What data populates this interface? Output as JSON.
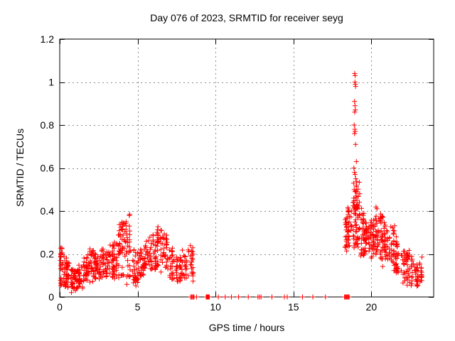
{
  "window": {
    "title": "Day 076 of 2023, SRMTID for receiver seyg"
  },
  "chart_data": {
    "type": "scatter",
    "title": "Day 076 of 2023, SRMTID for receiver seyg",
    "xlabel": "GPS time / hours",
    "ylabel": "SRMTID / TECUs",
    "xlim": [
      0,
      24
    ],
    "ylim": [
      0,
      1.2
    ],
    "xticks": [
      0,
      5,
      10,
      15,
      20
    ],
    "xtick_labels": [
      "0",
      "5",
      "10",
      "15",
      "20"
    ],
    "yticks": [
      0,
      0.2,
      0.4,
      0.6,
      0.8,
      1.0,
      1.2
    ],
    "ytick_labels": [
      "0",
      "0.2",
      "0.4",
      "0.6",
      "0.8",
      "1",
      "1.2"
    ],
    "grid": "dotted",
    "legend": "none",
    "marker": "plus",
    "colors": {
      "marker": "#ff0000",
      "grid": "#8c8c8c",
      "border": "#000000",
      "text": "#000000",
      "background": "#ffffff"
    },
    "seed": 2023076,
    "bins_format": "[t_start_hours, t_end_hours, n_points, y_center_TECUs, y_half_spread_TECUs]",
    "density_bins": [
      [
        0.0,
        0.3,
        30,
        0.15,
        0.1
      ],
      [
        0.3,
        0.7,
        40,
        0.1,
        0.06
      ],
      [
        0.7,
        1.1,
        40,
        0.08,
        0.05
      ],
      [
        1.1,
        1.5,
        35,
        0.09,
        0.05
      ],
      [
        1.5,
        1.9,
        35,
        0.13,
        0.06
      ],
      [
        1.9,
        2.3,
        35,
        0.15,
        0.07
      ],
      [
        2.3,
        2.7,
        35,
        0.13,
        0.06
      ],
      [
        2.7,
        3.1,
        35,
        0.16,
        0.07
      ],
      [
        3.1,
        3.5,
        35,
        0.17,
        0.08
      ],
      [
        3.5,
        3.9,
        35,
        0.2,
        0.11
      ],
      [
        3.9,
        4.3,
        35,
        0.22,
        0.13
      ],
      [
        4.3,
        4.6,
        25,
        0.24,
        0.15
      ],
      [
        4.6,
        5.0,
        30,
        0.14,
        0.09
      ],
      [
        5.0,
        5.4,
        30,
        0.17,
        0.07
      ],
      [
        5.4,
        5.8,
        30,
        0.19,
        0.07
      ],
      [
        5.8,
        6.2,
        30,
        0.21,
        0.08
      ],
      [
        6.2,
        6.6,
        30,
        0.24,
        0.11
      ],
      [
        6.6,
        7.0,
        30,
        0.21,
        0.09
      ],
      [
        7.0,
        7.4,
        28,
        0.16,
        0.08
      ],
      [
        7.4,
        7.8,
        28,
        0.13,
        0.06
      ],
      [
        7.8,
        8.2,
        26,
        0.15,
        0.07
      ],
      [
        8.2,
        8.6,
        24,
        0.17,
        0.08
      ],
      [
        18.2,
        18.5,
        20,
        0.3,
        0.07
      ],
      [
        18.5,
        18.8,
        26,
        0.33,
        0.1
      ],
      [
        18.8,
        19.0,
        26,
        0.36,
        0.14
      ],
      [
        19.0,
        19.25,
        30,
        0.38,
        0.16
      ],
      [
        19.25,
        19.55,
        30,
        0.29,
        0.1
      ],
      [
        19.55,
        19.85,
        30,
        0.28,
        0.09
      ],
      [
        19.85,
        20.15,
        30,
        0.27,
        0.09
      ],
      [
        20.15,
        20.45,
        30,
        0.3,
        0.12
      ],
      [
        20.45,
        20.75,
        30,
        0.28,
        0.11
      ],
      [
        20.75,
        21.1,
        30,
        0.26,
        0.09
      ],
      [
        21.1,
        21.5,
        30,
        0.24,
        0.1
      ],
      [
        21.5,
        21.9,
        30,
        0.18,
        0.08
      ],
      [
        21.9,
        22.3,
        28,
        0.14,
        0.08
      ],
      [
        22.3,
        22.7,
        28,
        0.13,
        0.08
      ],
      [
        22.7,
        23.1,
        26,
        0.1,
        0.05
      ],
      [
        23.1,
        23.35,
        16,
        0.12,
        0.05
      ]
    ],
    "spike_points": [
      [
        18.93,
        1.04
      ],
      [
        18.96,
        1.03
      ],
      [
        18.95,
        1.0
      ],
      [
        18.97,
        0.99
      ],
      [
        18.99,
        0.98
      ],
      [
        18.92,
        0.91
      ],
      [
        18.95,
        0.89
      ],
      [
        18.97,
        0.87
      ],
      [
        18.93,
        0.86
      ],
      [
        18.9,
        0.8
      ],
      [
        18.94,
        0.78
      ],
      [
        18.96,
        0.77
      ],
      [
        18.92,
        0.76
      ],
      [
        18.99,
        0.71
      ],
      [
        19.04,
        0.63
      ],
      [
        18.88,
        0.6
      ],
      [
        18.92,
        0.58
      ],
      [
        18.96,
        0.57
      ],
      [
        19.0,
        0.55
      ],
      [
        18.86,
        0.53
      ],
      [
        19.05,
        0.52
      ],
      [
        18.9,
        0.5
      ],
      [
        18.95,
        0.49
      ],
      [
        19.02,
        0.47
      ],
      [
        18.87,
        0.46
      ],
      [
        19.08,
        0.45
      ],
      [
        18.84,
        0.44
      ],
      [
        19.1,
        0.43
      ],
      [
        18.93,
        0.42
      ],
      [
        19.0,
        0.41
      ]
    ],
    "zero_line_hours": [
      8.4,
      8.46,
      8.52,
      8.58,
      8.62,
      8.78,
      9.4,
      9.44,
      9.47,
      9.5,
      9.53,
      9.56,
      9.6,
      10.18,
      10.62,
      11.02,
      11.48,
      12.1,
      12.72,
      12.82,
      12.92,
      13.62,
      14.42,
      14.6,
      15.58,
      16.25,
      17.05,
      18.28,
      18.33,
      18.38,
      18.43,
      18.48,
      18.53,
      18.58
    ]
  }
}
